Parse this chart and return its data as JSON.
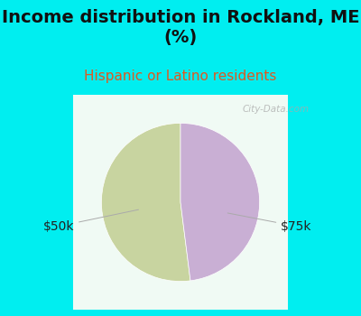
{
  "title": "Income distribution in Rockland, ME\n(%)",
  "subtitle": "Hispanic or Latino residents",
  "slices": [
    0.52,
    0.48
  ],
  "labels": [
    "$50k",
    "$75k"
  ],
  "colors": [
    "#c8d4a0",
    "#c9afd4"
  ],
  "bg_color": "#00eef0",
  "chart_bg_color": "#e8f5ee",
  "title_fontsize": 14,
  "subtitle_fontsize": 11,
  "subtitle_color": "#e05820",
  "label_fontsize": 10,
  "start_angle": 90,
  "watermark": "City-Data.com"
}
